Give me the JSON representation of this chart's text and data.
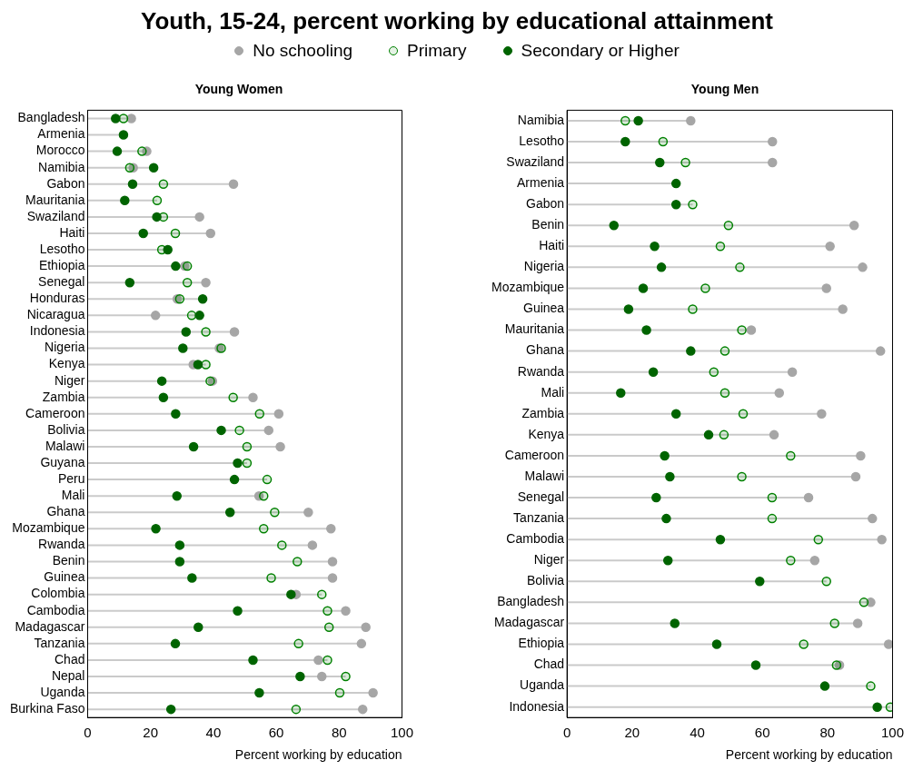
{
  "chart_data": [
    {
      "type": "scatter",
      "title": "Youth, 15-24, percent working by educational attainment",
      "subtitle": "Young Women",
      "xlabel": "Percent working by education",
      "orientation": "horizontal",
      "legend": "top",
      "marker": "circle",
      "xlim": [
        0,
        100
      ],
      "xticks": [
        0,
        20,
        40,
        60,
        80,
        100
      ],
      "categories": [
        "Bangladesh",
        "Armenia",
        "Morocco",
        "Namibia",
        "Gabon",
        "Mauritania",
        "Swaziland",
        "Haiti",
        "Lesotho",
        "Ethiopia",
        "Senegal",
        "Honduras",
        "Nicaragua",
        "Indonesia",
        "Nigeria",
        "Kenya",
        "Niger",
        "Zambia",
        "Cameroon",
        "Bolivia",
        "Malawi",
        "Guyana",
        "Peru",
        "Mali",
        "Ghana",
        "Mozambique",
        "Rwanda",
        "Benin",
        "Guinea",
        "Colombia",
        "Cambodia",
        "Madagascar",
        "Tanzania",
        "Chad",
        "Nepal",
        "Uganda",
        "Burkina Faso"
      ],
      "series": [
        {
          "name": "No schooling",
          "color": "#a6a6a6",
          "values": [
            13.9,
            null,
            18.8,
            14.5,
            46.4,
            null,
            35.6,
            39.1,
            null,
            30.9,
            37.6,
            28.5,
            21.6,
            46.7,
            41.9,
            33.6,
            39.7,
            52.6,
            60.8,
            57.6,
            61.3,
            null,
            null,
            54.5,
            70.2,
            77.4,
            71.5,
            77.9,
            77.9,
            66.3,
            82.1,
            88.5,
            87.1,
            73.4,
            74.5,
            90.8,
            87.5
          ]
        },
        {
          "name": "Primary",
          "color": "#008000",
          "values": [
            11.4,
            null,
            17.3,
            13.4,
            24.1,
            22.1,
            24.1,
            27.9,
            23.6,
            31.7,
            31.7,
            29.3,
            33.1,
            37.6,
            42.5,
            37.6,
            39.0,
            46.3,
            54.7,
            48.3,
            50.7,
            50.7,
            57.1,
            56.0,
            59.5,
            56.0,
            61.8,
            66.7,
            58.4,
            74.5,
            76.3,
            76.8,
            67.1,
            76.3,
            82.1,
            80.2,
            66.3
          ]
        },
        {
          "name": "Secondary or Higher",
          "color": "#006400",
          "values": [
            8.9,
            11.4,
            9.4,
            21.0,
            14.3,
            11.8,
            22.0,
            17.7,
            25.5,
            28.0,
            13.4,
            36.6,
            35.6,
            31.3,
            30.3,
            35.1,
            23.6,
            24.1,
            28.0,
            42.5,
            33.7,
            47.7,
            46.7,
            28.4,
            45.3,
            21.7,
            29.3,
            29.3,
            33.2,
            64.7,
            47.7,
            35.2,
            27.9,
            52.6,
            67.6,
            54.6,
            26.5
          ]
        }
      ]
    },
    {
      "type": "scatter",
      "subtitle": "Young Men",
      "xlabel": "Percent working by education",
      "orientation": "horizontal",
      "marker": "circle",
      "xlim": [
        0,
        100
      ],
      "xticks": [
        0,
        20,
        40,
        60,
        80,
        100
      ],
      "categories": [
        "Namibia",
        "Lesotho",
        "Swaziland",
        "Armenia",
        "Gabon",
        "Benin",
        "Haiti",
        "Nigeria",
        "Mozambique",
        "Guinea",
        "Mauritania",
        "Ghana",
        "Rwanda",
        "Mali",
        "Zambia",
        "Kenya",
        "Cameroon",
        "Malawi",
        "Senegal",
        "Tanzania",
        "Cambodia",
        "Niger",
        "Bolivia",
        "Bangladesh",
        "Madagascar",
        "Ethiopia",
        "Chad",
        "Uganda",
        "Indonesia"
      ],
      "series": [
        {
          "color": "#a6a6a6",
          "values": [
            38.0,
            63.1,
            63.1,
            null,
            null,
            88.2,
            80.8,
            90.8,
            79.7,
            84.7,
            56.6,
            96.3,
            69.2,
            65.2,
            78.2,
            63.6,
            90.2,
            88.7,
            74.2,
            93.8,
            96.7,
            76.1,
            null,
            93.3,
            89.3,
            98.8,
            83.7,
            null,
            null
          ]
        },
        {
          "color": "#008000",
          "values": [
            17.9,
            29.5,
            36.4,
            null,
            38.6,
            49.6,
            47.1,
            53.1,
            42.5,
            38.6,
            53.7,
            48.5,
            45.1,
            48.5,
            54.1,
            48.2,
            68.7,
            53.7,
            63.0,
            63.0,
            77.2,
            68.7,
            79.7,
            91.2,
            82.2,
            72.7,
            82.8,
            93.3,
            99.3
          ]
        },
        {
          "color": "#006400",
          "values": [
            21.9,
            17.9,
            28.5,
            33.5,
            33.5,
            14.4,
            26.9,
            29.0,
            23.4,
            18.9,
            24.4,
            38.0,
            26.5,
            16.5,
            33.5,
            43.5,
            30.0,
            31.6,
            27.4,
            30.5,
            47.1,
            31.0,
            59.2,
            null,
            33.1,
            46.0,
            58.0,
            79.2,
            95.3
          ]
        }
      ]
    }
  ]
}
